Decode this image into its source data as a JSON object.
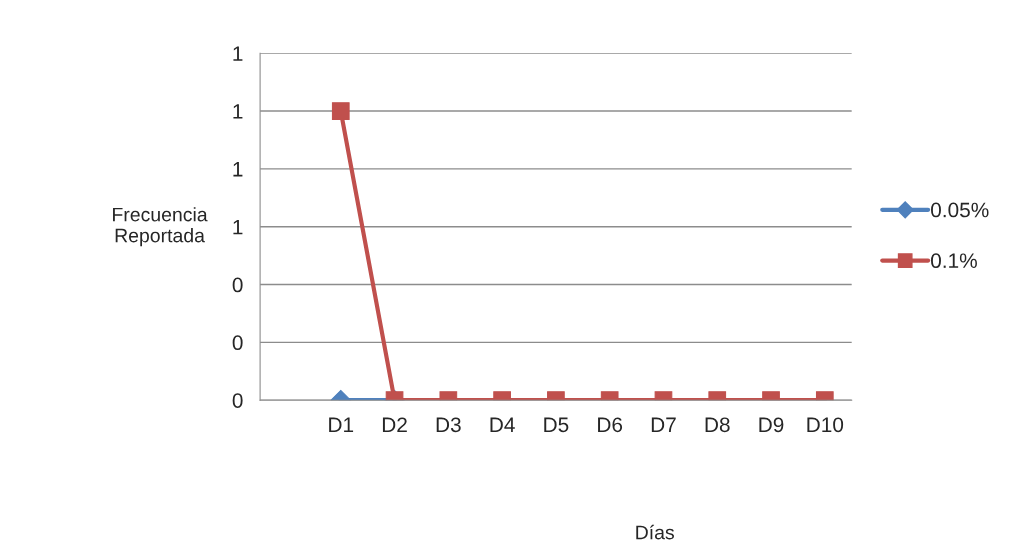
{
  "chart_data": {
    "type": "line",
    "xlabel": "Días",
    "ylabel": "Frecuencia\nReportada",
    "categories": [
      null,
      "D1",
      "D2",
      "D3",
      "D4",
      "D5",
      "D6",
      "D7",
      "D8",
      "D9",
      "D10"
    ],
    "series": [
      {
        "name": "0.05%",
        "color": "#4f81bd",
        "marker": "diamond",
        "values": [
          null,
          0,
          0,
          null,
          null,
          null,
          null,
          null,
          null,
          null,
          null
        ]
      },
      {
        "name": "0.1%",
        "color": "#c0504d",
        "marker": "square",
        "values": [
          null,
          1.0,
          0,
          0,
          0,
          0,
          0,
          0,
          0,
          0,
          0
        ]
      }
    ],
    "ylim": [
      0,
      1.2
    ],
    "yticks": [
      {
        "value": 0,
        "label": "0"
      },
      {
        "value": 0.2,
        "label": "0"
      },
      {
        "value": 0.4,
        "label": "0"
      },
      {
        "value": 0.6,
        "label": "1"
      },
      {
        "value": 0.8,
        "label": "1"
      },
      {
        "value": 1.0,
        "label": "1"
      },
      {
        "value": 1.2,
        "label": "1"
      }
    ],
    "grid": "y",
    "legend": "right",
    "line_style": "solid"
  }
}
